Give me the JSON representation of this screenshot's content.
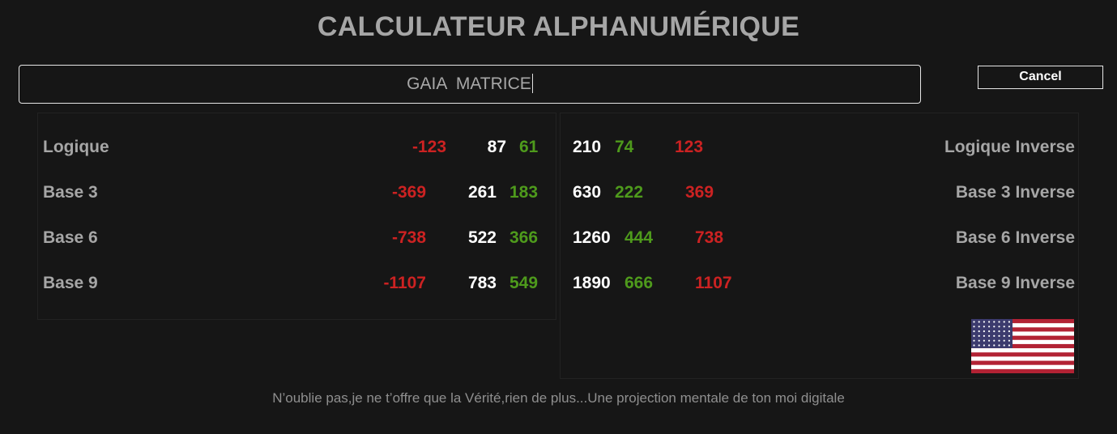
{
  "title": "CALCULATEUR ALPHANUMÉRIQUE",
  "input": {
    "value": "GAIA  MATRICE"
  },
  "cancel_label": "Cancel",
  "left_rows": [
    {
      "label": "Logique",
      "negative": "-123",
      "total": "87",
      "reduced": "61"
    },
    {
      "label": "Base 3",
      "negative": "-369",
      "total": "261",
      "reduced": "183"
    },
    {
      "label": "Base 6",
      "negative": "-738",
      "total": "522",
      "reduced": "366"
    },
    {
      "label": "Base 9",
      "negative": "-1107",
      "total": "783",
      "reduced": "549"
    }
  ],
  "right_rows": [
    {
      "label": "Logique Inverse",
      "total": "210",
      "reduced": "74",
      "positive": "123"
    },
    {
      "label": "Base 3 Inverse",
      "total": "630",
      "reduced": "222",
      "positive": "369"
    },
    {
      "label": "Base 6 Inverse",
      "total": "1260",
      "reduced": "444",
      "positive": "738"
    },
    {
      "label": "Base 9 Inverse",
      "total": "1890",
      "reduced": "666",
      "positive": "1107"
    }
  ],
  "flag_icon": "us-flag-icon",
  "colors": {
    "negative": "#cc2222",
    "total": "#ffffff",
    "reduced": "#4e9a1c",
    "label": "#a6a6a6",
    "background": "#161616"
  },
  "footer": "N’oublie pas,je ne t’offre que la Vérité,rien de plus...Une projection mentale de ton moi digitale"
}
